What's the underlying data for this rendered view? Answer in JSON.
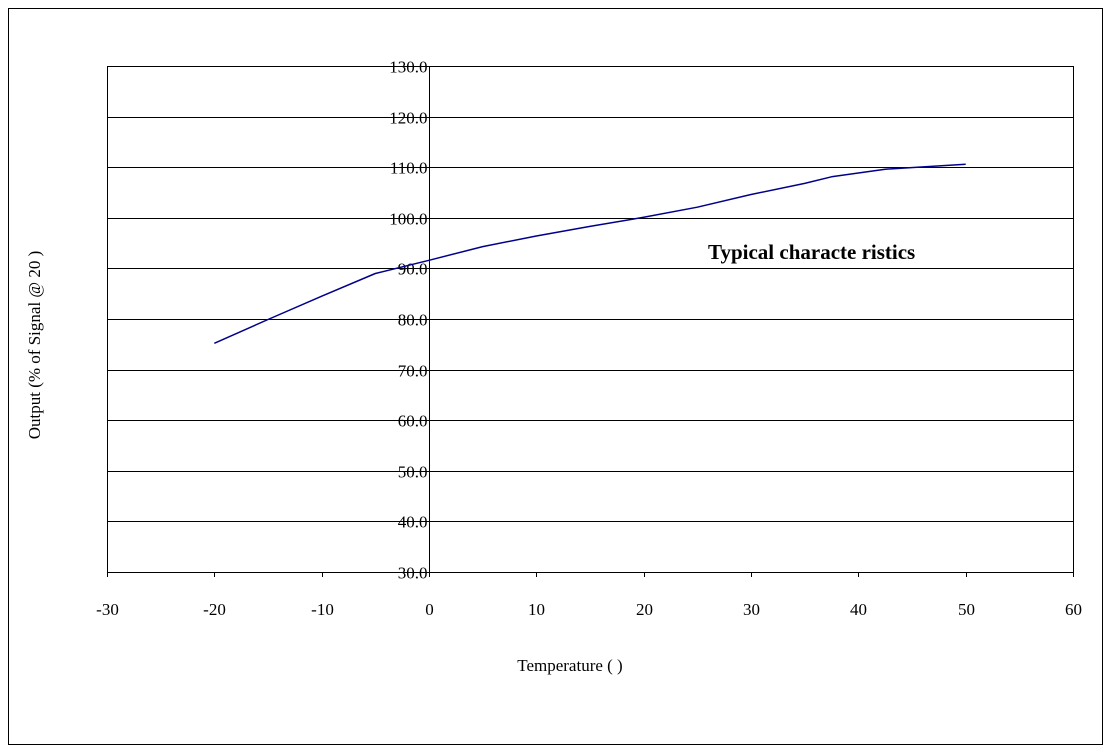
{
  "chart_data": {
    "type": "line",
    "title": "",
    "xlabel": "Temperature (    )",
    "ylabel": "Output (% of Signal @ 20    )",
    "annotation": "Typical characte ristics",
    "xlim": [
      -30,
      60
    ],
    "ylim": [
      30,
      130
    ],
    "x_ticks": [
      -30,
      -20,
      -10,
      0,
      10,
      20,
      30,
      40,
      50,
      60
    ],
    "x_tick_labels": [
      "-30",
      "-20",
      "-10",
      "0",
      "10",
      "20",
      "30",
      "40",
      "50",
      "60"
    ],
    "y_ticks": [
      30,
      40,
      50,
      60,
      70,
      80,
      90,
      100,
      110,
      120,
      130
    ],
    "y_tick_labels": [
      "30.0",
      "40.0",
      "50.0",
      "60.0",
      "70.0",
      "80.0",
      "90.0",
      "100.0",
      "110.0",
      "120.0",
      "130.0"
    ],
    "grid": "horizontal",
    "legend": "none",
    "series": [
      {
        "color": "#00008b",
        "x": [
          -20,
          -15,
          -10,
          -5,
          0,
          5,
          10,
          15,
          20,
          25,
          30,
          35,
          37.5,
          42.5,
          50
        ],
        "y": [
          75.2,
          79.9,
          84.5,
          89.0,
          91.6,
          94.3,
          96.4,
          98.3,
          100.1,
          102.1,
          104.6,
          106.8,
          108.1,
          109.6,
          110.6
        ]
      }
    ]
  }
}
